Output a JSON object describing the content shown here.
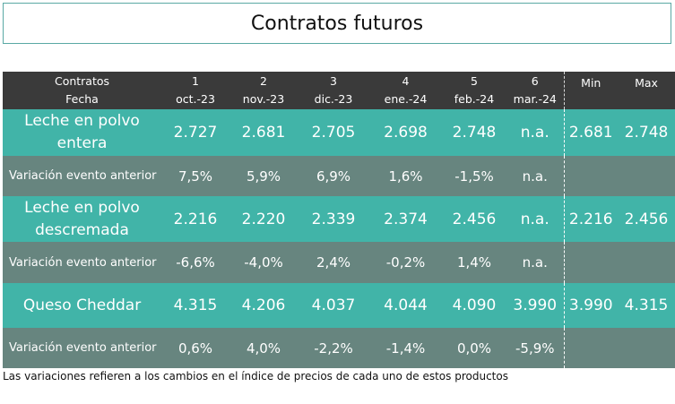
{
  "title": "Contratos futuros",
  "header": {
    "col0_line1": "Contratos",
    "col0_line2": "Fecha",
    "columns": [
      {
        "num": "1",
        "date": "oct.-23"
      },
      {
        "num": "2",
        "date": "nov.-23"
      },
      {
        "num": "3",
        "date": "dic.-23"
      },
      {
        "num": "4",
        "date": "ene.-24"
      },
      {
        "num": "5",
        "date": "feb.-24"
      },
      {
        "num": "6",
        "date": "mar.-24"
      }
    ],
    "min_label": "Min",
    "max_label": "Max"
  },
  "rows": [
    {
      "label_line1": "Leche en polvo",
      "label_line2": "entera",
      "values": [
        "2.727",
        "2.681",
        "2.705",
        "2.698",
        "2.748",
        "n.a."
      ],
      "min": "2.681",
      "max": "2.748"
    },
    {
      "label": "Variación evento anterior",
      "values": [
        "7,5%",
        "5,9%",
        "6,9%",
        "1,6%",
        "-1,5%",
        "n.a."
      ]
    },
    {
      "label_line1": "Leche en polvo",
      "label_line2": "descremada",
      "values": [
        "2.216",
        "2.220",
        "2.339",
        "2.374",
        "2.456",
        "n.a."
      ],
      "min": "2.216",
      "max": "2.456"
    },
    {
      "label": "Variación evento anterior",
      "values": [
        "-6,6%",
        "-4,0%",
        "2,4%",
        "-0,2%",
        "1,4%",
        "n.a."
      ]
    },
    {
      "label": "Queso Cheddar",
      "values": [
        "4.315",
        "4.206",
        "4.037",
        "4.044",
        "4.090",
        "3.990"
      ],
      "min": "3.990",
      "max": "4.315"
    },
    {
      "label": "Variación evento anterior",
      "values": [
        "0,6%",
        "4,0%",
        "-2,2%",
        "-1,4%",
        "0,0%",
        "-5,9%"
      ]
    }
  ],
  "footnote": "Las variaciones refieren a los cambios en el índice de precios de cada uno de estos productos",
  "colors": {
    "header_bg": "#3a3a3a",
    "product_bg": "#41b4a8",
    "variation_bg": "#67857f",
    "title_border": "#5aa9a4"
  }
}
